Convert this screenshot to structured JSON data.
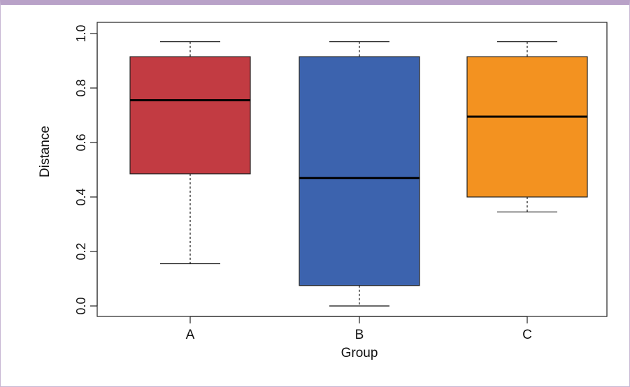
{
  "chart_data": {
    "type": "boxplot",
    "title": "",
    "xlabel": "Group",
    "ylabel": "Distance",
    "ylim": [
      0.0,
      1.0
    ],
    "yticks": [
      "0.0",
      "0.2",
      "0.4",
      "0.6",
      "0.8",
      "1.0"
    ],
    "categories": [
      "A",
      "B",
      "C"
    ],
    "series": [
      {
        "category": "A",
        "color": "#c23b42",
        "whisker_low": 0.155,
        "q1": 0.485,
        "median": 0.755,
        "q3": 0.915,
        "whisker_high": 0.97
      },
      {
        "category": "B",
        "color": "#3c63ae",
        "whisker_low": 0.0,
        "q1": 0.075,
        "median": 0.47,
        "q3": 0.915,
        "whisker_high": 0.97
      },
      {
        "category": "C",
        "color": "#f39220",
        "whisker_low": 0.345,
        "q1": 0.4,
        "median": 0.695,
        "q3": 0.915,
        "whisker_high": 0.97
      }
    ],
    "grid": false,
    "legend": "none"
  }
}
